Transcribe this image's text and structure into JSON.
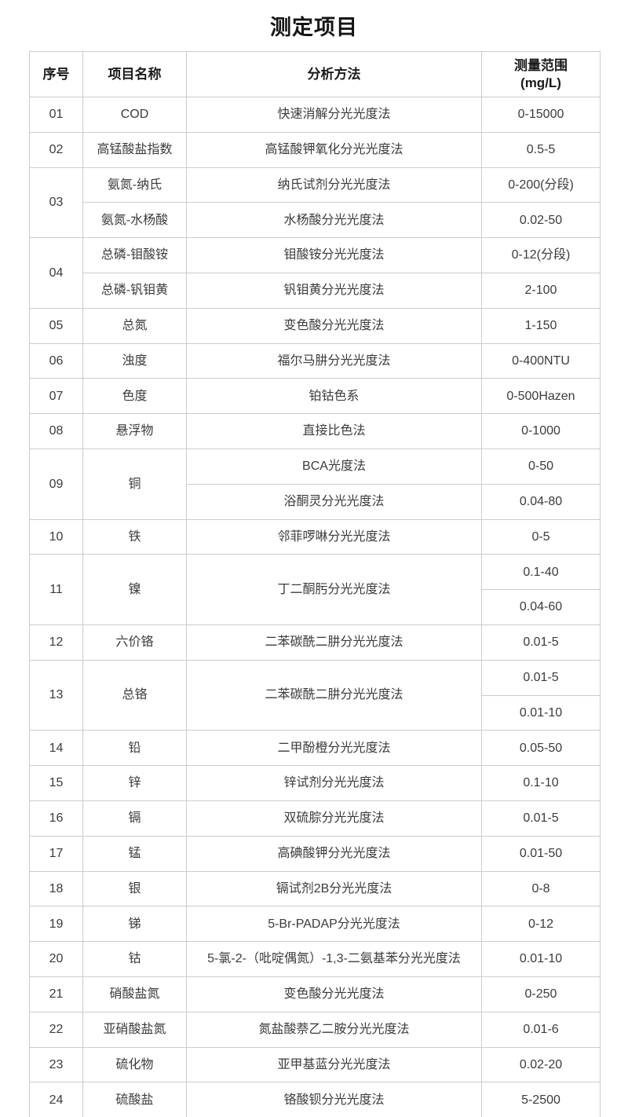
{
  "title": "测定项目",
  "header": {
    "no": "序号",
    "name": "项目名称",
    "method": "分析方法",
    "range_line1": "测量范围",
    "range_line2": "(mg/L)"
  },
  "items": [
    {
      "no": "01",
      "name": "COD",
      "method": "快速消解分光光度法",
      "range": "0-15000"
    },
    {
      "no": "02",
      "name": "高锰酸盐指数",
      "method": "高锰酸钾氧化分光光度法",
      "range": "0.5-5"
    },
    {
      "no": "03",
      "name": "氨氮-纳氏",
      "method": "纳氏试剂分光光度法",
      "range": "0-200(分段)",
      "name2": "氨氮-水杨酸",
      "method2": "水杨酸分光光度法",
      "range2": "0.02-50"
    },
    {
      "no": "04",
      "name": "总磷-钼酸铵",
      "method": "钼酸铵分光光度法",
      "range": "0-12(分段)",
      "name2": "总磷-钒钼黄",
      "method2": "钒钼黄分光光度法",
      "range2": "2-100"
    },
    {
      "no": "05",
      "name": "总氮",
      "method": "变色酸分光光度法",
      "range": "1-150"
    },
    {
      "no": "06",
      "name": "浊度",
      "method": "福尔马肼分光光度法",
      "range": "0-400NTU"
    },
    {
      "no": "07",
      "name": "色度",
      "method": "铂钴色系",
      "range": "0-500Hazen"
    },
    {
      "no": "08",
      "name": "悬浮物",
      "method": "直接比色法",
      "range": "0-1000"
    },
    {
      "no": "09",
      "name": "铜",
      "method": "BCA光度法",
      "range": "0-50",
      "method2": "浴酮灵分光光度法",
      "range2": "0.04-80"
    },
    {
      "no": "10",
      "name": "铁",
      "method": "邻菲啰啉分光光度法",
      "range": "0-5"
    },
    {
      "no": "11",
      "name": "镍",
      "method": "丁二酮肟分光光度法",
      "range": "0.1-40",
      "range2": "0.04-60"
    },
    {
      "no": "12",
      "name": "六价铬",
      "method": "二苯碳酰二肼分光光度法",
      "range": "0.01-5"
    },
    {
      "no": "13",
      "name": "总铬",
      "method": "二苯碳酰二肼分光光度法",
      "range": "0.01-5",
      "range2": "0.01-10"
    },
    {
      "no": "14",
      "name": "铅",
      "method": "二甲酚橙分光光度法",
      "range": "0.05-50"
    },
    {
      "no": "15",
      "name": "锌",
      "method": "锌试剂分光光度法",
      "range": "0.1-10"
    },
    {
      "no": "16",
      "name": "镉",
      "method": "双硫腙分光光度法",
      "range": "0.01-5"
    },
    {
      "no": "17",
      "name": "锰",
      "method": "高碘酸钾分光光度法",
      "range": "0.01-50"
    },
    {
      "no": "18",
      "name": "银",
      "method": "镉试剂2B分光光度法",
      "range": "0-8"
    },
    {
      "no": "19",
      "name": "锑",
      "method": "5-Br-PADAP分光光度法",
      "range": "0-12"
    },
    {
      "no": "20",
      "name": "钴",
      "method": "5-氯-2-（吡啶偶氮）-1,3-二氨基苯分光光度法",
      "range": "0.01-10"
    },
    {
      "no": "21",
      "name": "硝酸盐氮",
      "method": "变色酸分光光度法",
      "range": "0-250"
    },
    {
      "no": "22",
      "name": "亚硝酸盐氮",
      "method": "氮盐酸萘乙二胺分光光度法",
      "range": "0.01-6"
    },
    {
      "no": "23",
      "name": "硫化物",
      "method": "亚甲基蓝分光光度法",
      "range": "0.02-20"
    },
    {
      "no": "24",
      "name": "硫酸盐",
      "method": "铬酸钡分光光度法",
      "range": "5-2500"
    }
  ]
}
